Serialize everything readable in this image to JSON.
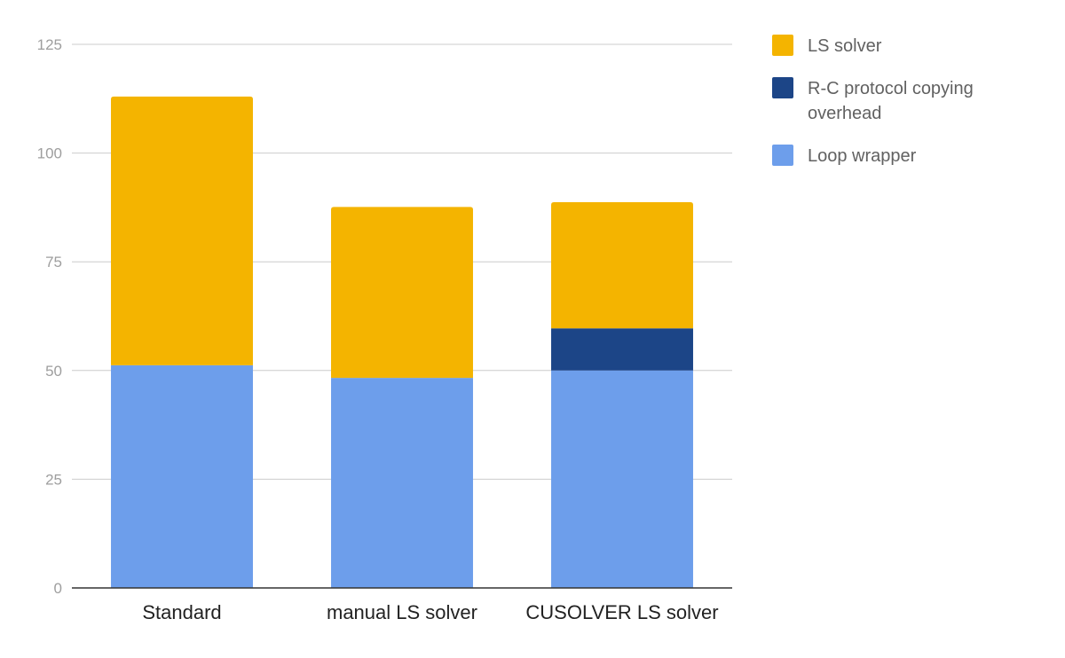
{
  "chart_data": {
    "type": "bar",
    "stacked": true,
    "categories": [
      "Standard",
      "manual LS solver",
      "CUSOLVER LS solver"
    ],
    "series": [
      {
        "name": "Loop wrapper",
        "values": [
          51.2,
          48.3,
          50
        ],
        "color": "#6d9eeb"
      },
      {
        "name": "R-C protocol copying overhead",
        "values": [
          0,
          0,
          9.7
        ],
        "color": "#1c4587"
      },
      {
        "name": "LS solver",
        "values": [
          61.8,
          39.3,
          29
        ],
        "color": "#f4b400"
      }
    ],
    "legend_order": [
      "LS solver",
      "R-C protocol copying overhead",
      "Loop wrapper"
    ],
    "legend_position": "right",
    "title": "",
    "xlabel": "",
    "ylabel": "",
    "ylim": [
      0,
      125
    ],
    "yticks": [
      0,
      25,
      50,
      75,
      100,
      125
    ],
    "grid": true
  }
}
